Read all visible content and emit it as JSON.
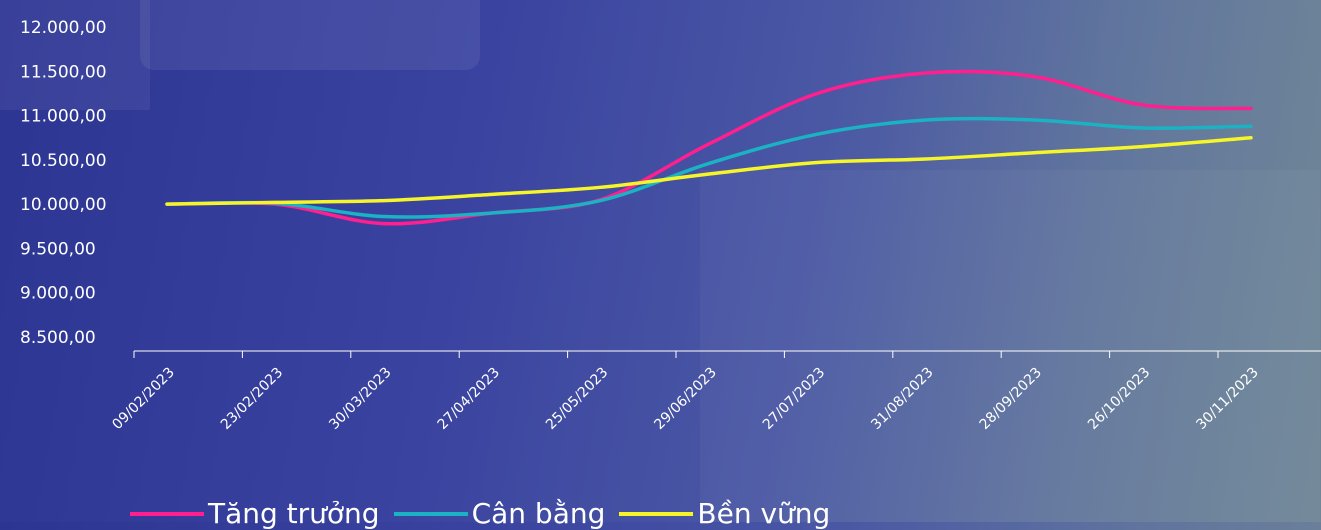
{
  "chart_data": {
    "type": "line",
    "x": [
      "09/02/2023",
      "23/02/2023",
      "30/03/2023",
      "27/04/2023",
      "25/05/2023",
      "29/06/2023",
      "27/07/2023",
      "31/08/2023",
      "28/09/2023",
      "26/10/2023",
      "30/11/2023"
    ],
    "y_ticks": [
      "12.000,00",
      "11.500,00",
      "11.000,00",
      "10.500,00",
      "10.000,00",
      "9.500,00",
      "9.000,00",
      "8.500,00"
    ],
    "ylim": [
      8500,
      12000
    ],
    "grid": false,
    "legend_position": "bottom-left",
    "series": [
      {
        "name": "Tăng trưởng",
        "color": "#ff1f8e",
        "values": [
          10000,
          10000,
          9780,
          9900,
          10050,
          10680,
          11250,
          11480,
          11440,
          11120,
          11080
        ]
      },
      {
        "name": "Cân bằng",
        "color": "#1bb2c4",
        "values": [
          10000,
          10010,
          9860,
          9900,
          10040,
          10460,
          10790,
          10950,
          10950,
          10860,
          10880
        ]
      },
      {
        "name": "Bền vững",
        "color": "#f5f52a",
        "values": [
          10000,
          10020,
          10040,
          10110,
          10190,
          10340,
          10470,
          10510,
          10580,
          10650,
          10750
        ]
      }
    ],
    "axis_color": "#ffffff",
    "text_color": "#ffffff"
  }
}
